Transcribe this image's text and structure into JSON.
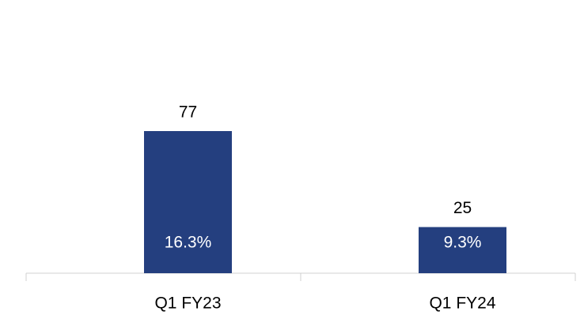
{
  "chart_data": {
    "type": "bar",
    "categories": [
      "Q1 FY23",
      "Q1 FY24"
    ],
    "values": [
      77,
      25
    ],
    "inner_labels": [
      "16.3%",
      "9.3%"
    ],
    "color": "#243f7f"
  }
}
